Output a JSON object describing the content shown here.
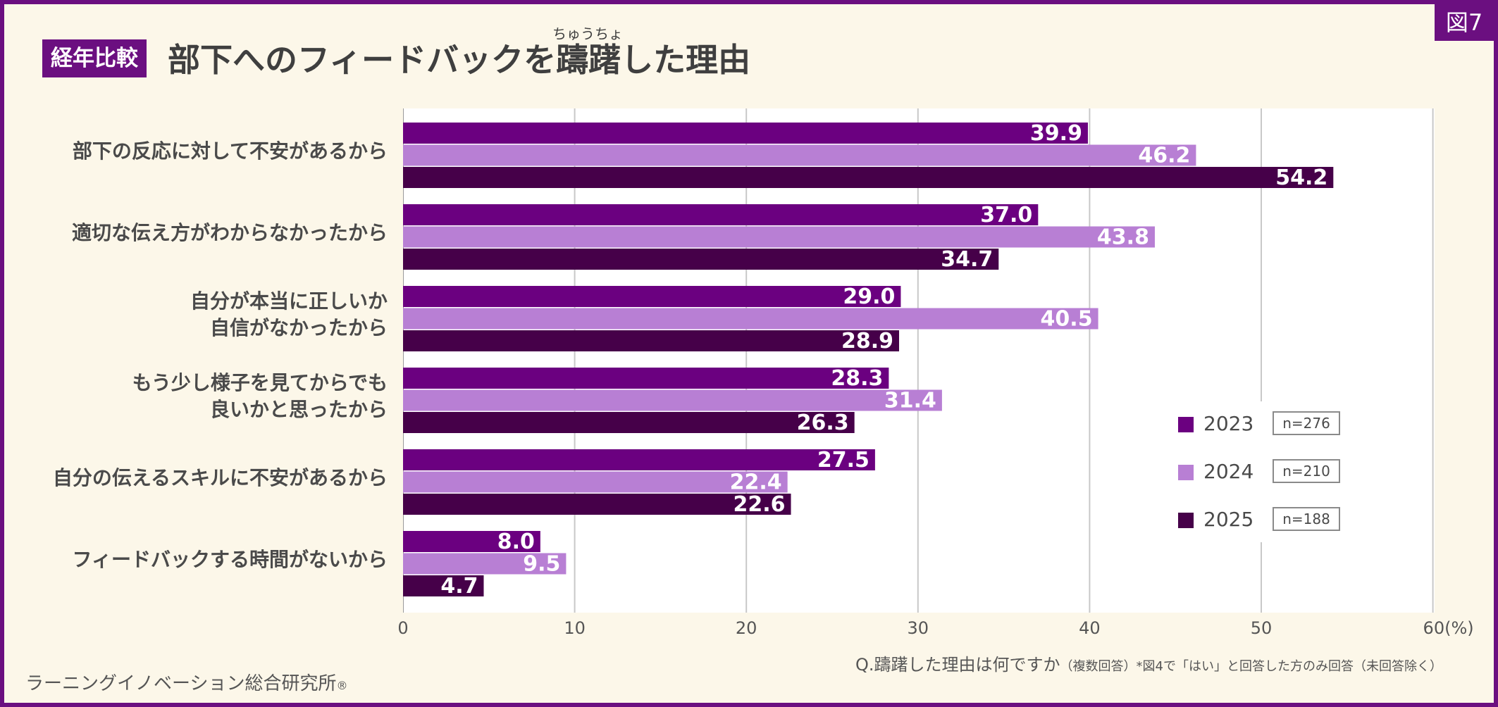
{
  "figure_tag": "図7",
  "title": {
    "badge": "経年比較",
    "text": "部下へのフィードバックを躊躇した理由",
    "ruby": "ちゅうちょ"
  },
  "colors": {
    "brand": "#6b0f80",
    "background": "#fcf7e9",
    "series": [
      "#6b0080",
      "#b87fd4",
      "#460049"
    ]
  },
  "chart_data": {
    "type": "bar",
    "orientation": "horizontal",
    "categories": [
      "部下の反応に対して不安があるから",
      "適切な伝え方がわからなかったから",
      "自分が本当に正しいか\n自信がなかったから",
      "もう少し様子を見てからでも\n良いかと思ったから",
      "自分の伝えるスキルに不安があるから",
      "フィードバックする時間がないから"
    ],
    "series": [
      {
        "name": "2023",
        "n": "n=276",
        "values": [
          39.9,
          37.0,
          29.0,
          28.3,
          27.5,
          8.0
        ]
      },
      {
        "name": "2024",
        "n": "n=210",
        "values": [
          46.2,
          43.8,
          40.5,
          31.4,
          22.4,
          9.5
        ]
      },
      {
        "name": "2025",
        "n": "n=188",
        "values": [
          54.2,
          34.7,
          28.9,
          26.3,
          22.6,
          4.7
        ]
      }
    ],
    "x_ticks": [
      "0",
      "10",
      "20",
      "30",
      "40",
      "50",
      "60(%)"
    ],
    "xlim": [
      0,
      60
    ],
    "grid": "vertical",
    "legend_position": "bottom-right"
  },
  "note": {
    "main": "Q.躊躇した理由は何ですか",
    "detail": "（複数回答）*図4で「はい」と回答した方のみ回答（未回答除く）"
  },
  "credit": {
    "text": "ラーニングイノベーション総合研究所",
    "mark": "®"
  }
}
